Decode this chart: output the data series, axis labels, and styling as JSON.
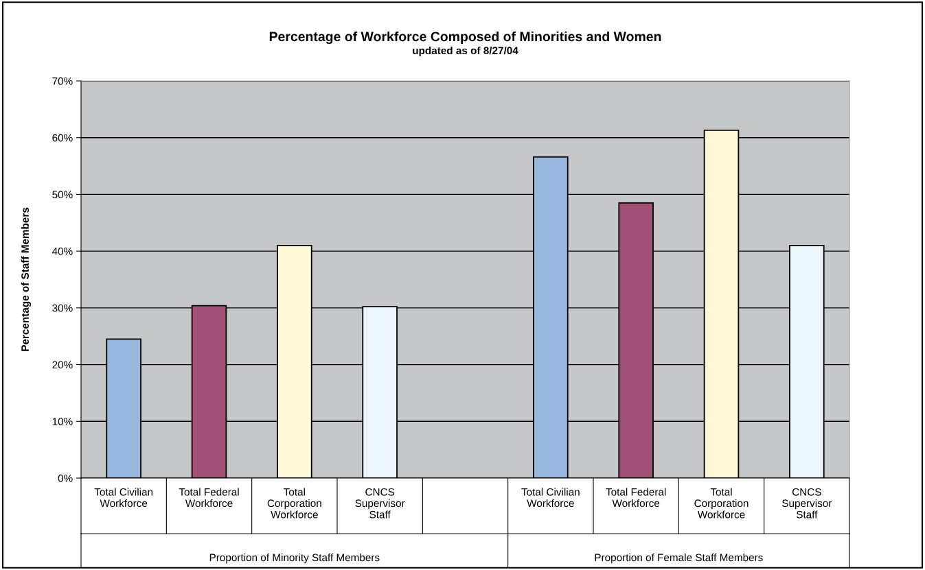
{
  "chart_data": {
    "type": "bar",
    "title": "Percentage of Workforce Composed of Minorities and Women",
    "subtitle": "updated as of 8/27/04",
    "ylabel": "Percentage of Staff Members",
    "categories": [
      "Total Civilian\nWorkforce",
      "Total Federal\nWorkforce",
      "Total\nCorporation\nWorkforce",
      "CNCS\nSupervisor\nStaff",
      null,
      "Total Civilian\nWorkforce",
      "Total Federal\nWorkforce",
      "Total\nCorporation\nWorkforce",
      "CNCS\nSupervisor\nStaff"
    ],
    "values": [
      24.5,
      30.4,
      41.0,
      30.2,
      null,
      56.6,
      48.5,
      61.3,
      41.0
    ],
    "colors": [
      "#99b8e0",
      "#a25176",
      "#fff9d7",
      "#edf6fd",
      "#ffffff",
      "#99b8e0",
      "#a25176",
      "#fff9d7",
      "#edf6fd"
    ],
    "ylim": [
      0,
      70
    ],
    "yticks": [
      {
        "value": 0,
        "label": "0%"
      },
      {
        "value": 10,
        "label": "10%"
      },
      {
        "value": 20,
        "label": "20%"
      },
      {
        "value": 30,
        "label": "30%"
      },
      {
        "value": 40,
        "label": "40%"
      },
      {
        "value": 50,
        "label": "50%"
      },
      {
        "value": 60,
        "label": "60%"
      },
      {
        "value": 70,
        "label": "70%"
      }
    ],
    "grid": "y",
    "annotations": [
      "Proportion of Minority Staff Members",
      "Proportion of Female Staff Members"
    ]
  }
}
